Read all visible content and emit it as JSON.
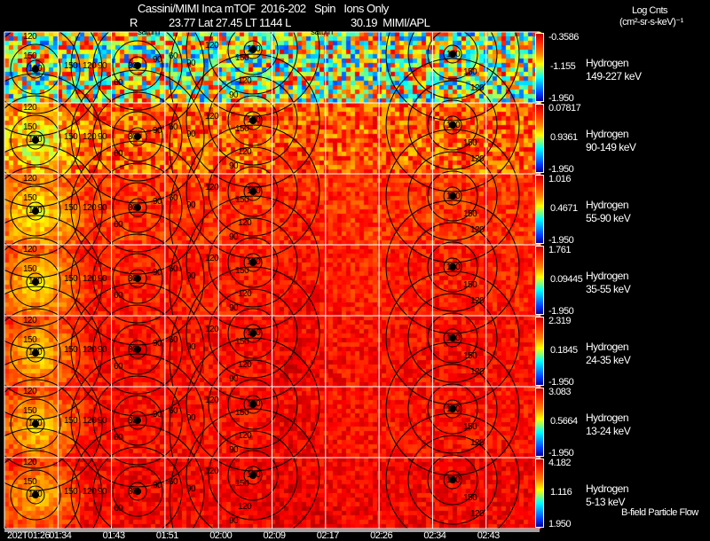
{
  "header": {
    "title": "Cassini/MIMI Inca mTOF  2016-202   Spin   Ions Only",
    "info_r": "R",
    "info_vals": "23.77 Lat 27.45 LT 1144 L",
    "info_l": "30.19  MIMI/APL",
    "units_title": "Log Cnts",
    "units": "(cm²-sr-s-keV)⁻¹",
    "saturn_labels": [
      "saturn",
      "saturn"
    ]
  },
  "footer": {
    "flow_label": "B-field Particle Flow"
  },
  "chart_data": {
    "type": "heatmap",
    "title": "Cassini/MIMI Inca mTOF 2016-202 Spin Ions Only",
    "colorbar_label": "Log Cnts (cm2-sr-s-keV)-1",
    "x_ticks": [
      "202T01:26",
      "01:34",
      "01:43",
      "01:51",
      "02:00",
      "02:09",
      "02:17",
      "02:26",
      "02:34",
      "02:43"
    ],
    "panels": [
      {
        "species": "Hydrogen",
        "energy": "149-227 keV",
        "cmax": "-0.3586",
        "cmid": "-1.155",
        "cmin": "-1.950",
        "level": 0.45,
        "noise": 0.35
      },
      {
        "species": "Hydrogen",
        "energy": "90-149 keV",
        "cmax": "0.07817",
        "cmid": "0.9361",
        "cmin": "-1.950",
        "level": 0.2,
        "noise": 0.15
      },
      {
        "species": "Hydrogen",
        "energy": "55-90 keV",
        "cmax": "1.016",
        "cmid": "0.4671",
        "cmin": "-1.950",
        "level": 0.15,
        "noise": 0.08
      },
      {
        "species": "Hydrogen",
        "energy": "35-55 keV",
        "cmax": "1.761",
        "cmid": "0.09445",
        "cmin": "-1.950",
        "level": 0.12,
        "noise": 0.07
      },
      {
        "species": "Hydrogen",
        "energy": "24-35 keV",
        "cmax": "2.319",
        "cmid": "0.1845",
        "cmin": "-1.950",
        "level": 0.1,
        "noise": 0.07
      },
      {
        "species": "Hydrogen",
        "energy": "13-24 keV",
        "cmax": "3.083",
        "cmid": "0.5664",
        "cmin": "-1.950",
        "level": 0.1,
        "noise": 0.07
      },
      {
        "species": "Hydrogen",
        "energy": "5-13 keV",
        "cmax": "4.182",
        "cmid": "1.116",
        "cmin": "1.950",
        "level": 0.08,
        "noise": 0.07
      }
    ],
    "contour_labels": {
      "col0": [
        "120",
        "150",
        "180"
      ],
      "col1": [
        "150",
        "120",
        "90"
      ],
      "col2": [
        "30",
        "60",
        "90"
      ],
      "col3": [
        "60",
        "90",
        "120"
      ],
      "col4": [
        "180",
        "150",
        "120",
        "90"
      ],
      "col8": [
        "180",
        "150",
        "120"
      ]
    }
  }
}
